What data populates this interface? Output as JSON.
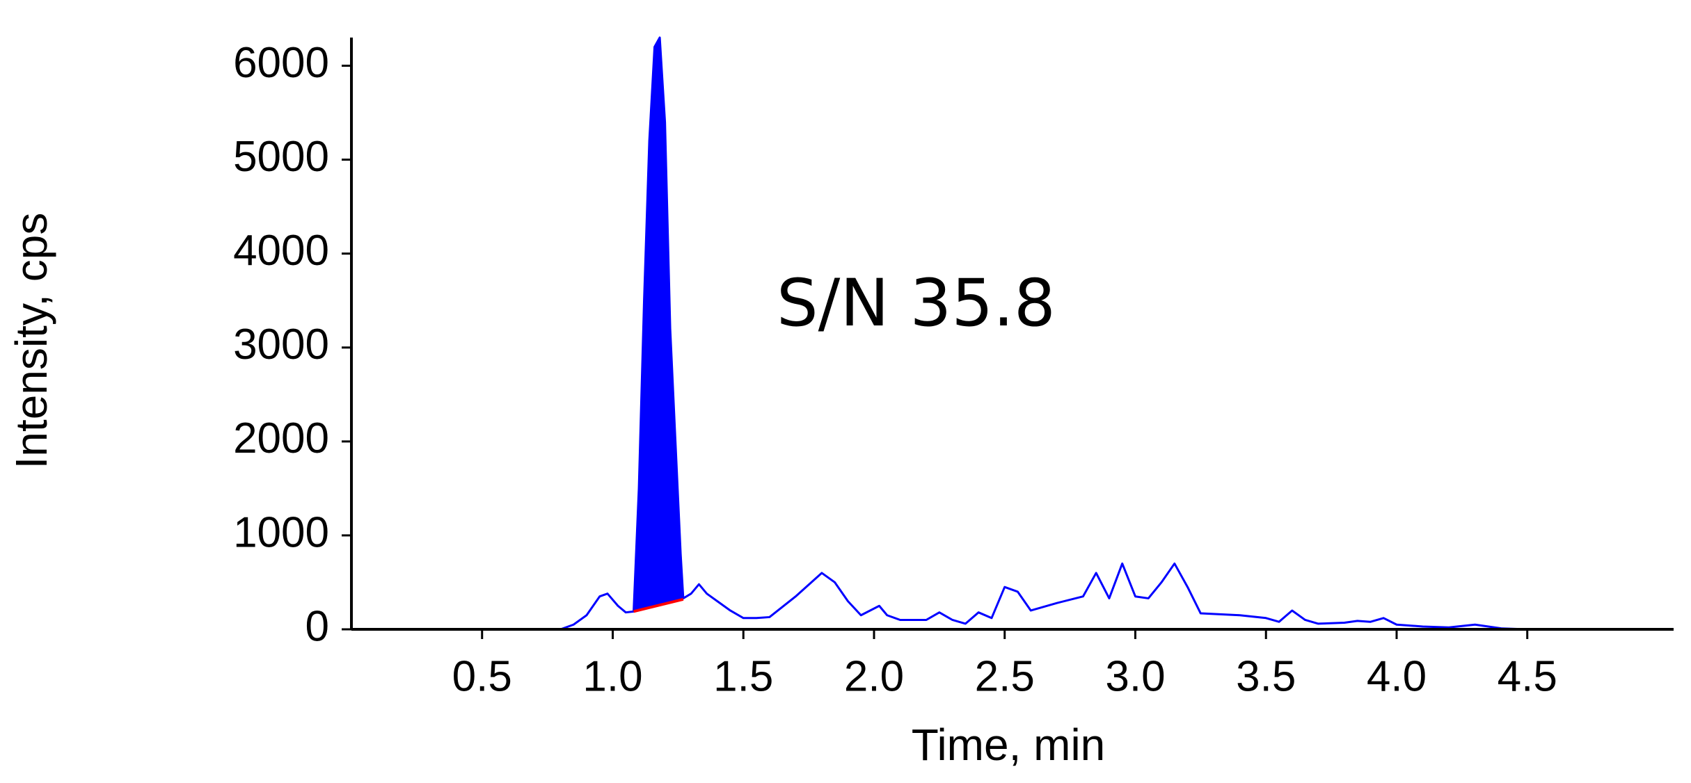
{
  "chart_data": {
    "type": "line",
    "ylabel": "Intensity, cps",
    "xlabel": "Time, min",
    "annotation": "S/N 35.8",
    "x": [
      0,
      0.4,
      0.8,
      0.85,
      0.9,
      0.95,
      0.98,
      1.02,
      1.05,
      1.08,
      1.1,
      1.12,
      1.14,
      1.16,
      1.18,
      1.2,
      1.22,
      1.24,
      1.26,
      1.27,
      1.3,
      1.33,
      1.36,
      1.4,
      1.45,
      1.5,
      1.55,
      1.6,
      1.7,
      1.8,
      1.85,
      1.9,
      1.95,
      2.02,
      2.05,
      2.1,
      2.2,
      2.25,
      2.3,
      2.35,
      2.4,
      2.45,
      2.5,
      2.55,
      2.6,
      2.7,
      2.8,
      2.85,
      2.9,
      2.95,
      3.0,
      3.05,
      3.1,
      3.15,
      3.2,
      3.25,
      3.4,
      3.5,
      3.55,
      3.6,
      3.65,
      3.7,
      3.8,
      3.85,
      3.9,
      3.95,
      4.0,
      4.1,
      4.2,
      4.3,
      4.4,
      4.5,
      5.06
    ],
    "values": [
      0,
      0,
      0,
      50,
      150,
      350,
      380,
      250,
      180,
      190,
      1500,
      3500,
      5200,
      6200,
      6300,
      5400,
      3200,
      2000,
      800,
      330,
      380,
      480,
      380,
      300,
      200,
      120,
      120,
      130,
      350,
      600,
      500,
      300,
      150,
      250,
      150,
      100,
      100,
      180,
      100,
      60,
      180,
      120,
      450,
      400,
      200,
      280,
      350,
      600,
      330,
      700,
      350,
      330,
      500,
      700,
      450,
      170,
      150,
      120,
      80,
      200,
      100,
      60,
      70,
      90,
      80,
      120,
      50,
      30,
      20,
      50,
      10,
      0,
      0
    ],
    "color": "#0000ff",
    "peak": {
      "x": [
        1.08,
        1.27
      ],
      "baseline": [
        190,
        320
      ],
      "fill": "#0000ff",
      "baseline_color": "#ff0000"
    },
    "xlim": [
      0,
      5.06
    ],
    "ylim": [
      0,
      6300
    ],
    "xticks": [
      0.5,
      {
        "value": 1,
        "label": "1.0"
      },
      1.5,
      {
        "value": 2,
        "label": "2.0"
      },
      2.5,
      {
        "value": 3,
        "label": "3.0"
      },
      3.5,
      {
        "value": 4,
        "label": "4.0"
      },
      4.5
    ],
    "yticks": [
      0,
      1000,
      2000,
      3000,
      4000,
      5000,
      6000
    ]
  }
}
